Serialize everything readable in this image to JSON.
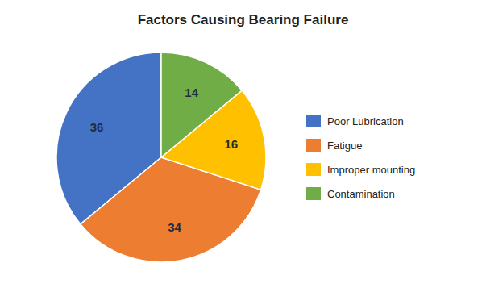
{
  "chart_data": {
    "type": "pie",
    "title": "Factors Causing Bearing Failure",
    "categories": [
      "Poor Lubrication",
      "Fatigue",
      "Improper mounting",
      "Contamination"
    ],
    "values": [
      36,
      34,
      16,
      14
    ],
    "colors": [
      "#4472C4",
      "#ED7D31",
      "#FFC000",
      "#70AD47"
    ],
    "data_labels": true,
    "legend": "right"
  }
}
